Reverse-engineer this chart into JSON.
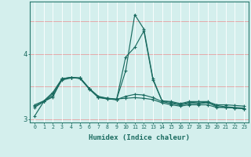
{
  "xlabel": "Humidex (Indice chaleur)",
  "bg_color": "#d4efed",
  "grid_major_color": "#f0c8c8",
  "grid_minor_color": "#ffffff",
  "line_color": "#1a6b60",
  "x_values": [
    0,
    1,
    2,
    3,
    4,
    5,
    6,
    7,
    8,
    9,
    10,
    11,
    12,
    13,
    14,
    15,
    16,
    17,
    18,
    19,
    20,
    21,
    22,
    23
  ],
  "series": [
    [
      3.18,
      3.27,
      3.34,
      3.62,
      3.64,
      3.63,
      3.47,
      3.35,
      3.32,
      3.31,
      3.32,
      3.33,
      3.32,
      3.3,
      3.25,
      3.22,
      3.2,
      3.22,
      3.22,
      3.22,
      3.18,
      3.18,
      3.17,
      3.16
    ],
    [
      3.22,
      3.28,
      3.41,
      3.62,
      3.64,
      3.62,
      3.46,
      3.33,
      3.31,
      3.3,
      3.95,
      4.1,
      4.35,
      3.6,
      3.28,
      3.27,
      3.24,
      3.27,
      3.27,
      3.27,
      3.22,
      3.22,
      3.21,
      3.2
    ],
    [
      3.2,
      3.27,
      3.36,
      3.6,
      3.63,
      3.63,
      3.47,
      3.34,
      3.32,
      3.3,
      3.35,
      3.38,
      3.37,
      3.33,
      3.27,
      3.24,
      3.22,
      3.24,
      3.24,
      3.25,
      3.21,
      3.19,
      3.18,
      3.17
    ],
    [
      3.05,
      3.27,
      3.39,
      3.61,
      3.64,
      3.63,
      3.47,
      3.34,
      3.31,
      3.3,
      3.74,
      4.6,
      4.38,
      3.62,
      3.28,
      3.26,
      3.22,
      3.26,
      3.25,
      3.26,
      3.19,
      3.18,
      3.17,
      3.16
    ]
  ],
  "ylim": [
    2.95,
    4.8
  ],
  "yticks": [
    3.0,
    4.0
  ],
  "xlim": [
    -0.5,
    23.5
  ],
  "figsize": [
    3.2,
    2.0
  ],
  "dpi": 100
}
